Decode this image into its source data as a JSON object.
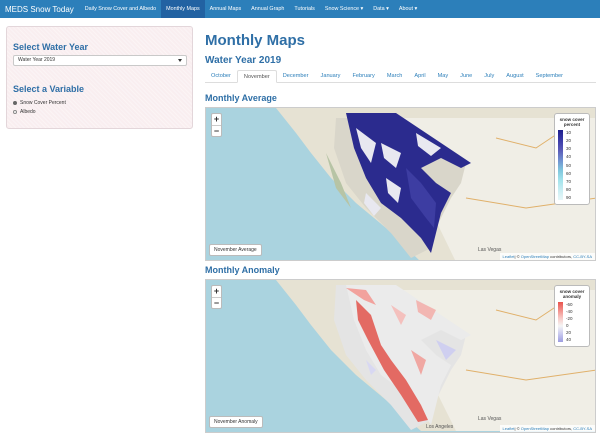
{
  "navbar": {
    "brand": "MEDS Snow Today",
    "items": [
      {
        "label": "Daily Snow Cover and Albedo"
      },
      {
        "label": "Monthly Maps"
      },
      {
        "label": "Annual Maps"
      },
      {
        "label": "Annual Graph"
      },
      {
        "label": "Tutorials"
      },
      {
        "label": "Snow Science ▾"
      },
      {
        "label": "Data ▾"
      },
      {
        "label": "About ▾"
      }
    ],
    "active_index": 1
  },
  "sidebar": {
    "year_heading": "Select Water Year",
    "year_value": "Water Year 2019",
    "variable_heading": "Select a Variable",
    "options": [
      {
        "label": "Snow Cover Percent",
        "selected": true
      },
      {
        "label": "Albedo",
        "selected": false
      }
    ]
  },
  "main": {
    "title": "Monthly Maps",
    "subtitle": "Water Year 2019",
    "tabs": [
      "October",
      "November",
      "December",
      "January",
      "February",
      "March",
      "April",
      "May",
      "June",
      "July",
      "August",
      "September"
    ],
    "active_tab": "November",
    "average": {
      "heading": "Monthly Average",
      "label": "November Average",
      "legend_title": "snow cover percent",
      "legend_ticks": [
        "10",
        "20",
        "30",
        "40",
        "50",
        "60",
        "70",
        "80",
        "90"
      ],
      "legend_colors": [
        "#1f1f8f",
        "#3a3aa8",
        "#5a5ab8",
        "#6f8fd0",
        "#7fc6dd",
        "#a3e3ec",
        "#c9eef3",
        "#e8f7f9"
      ]
    },
    "anomaly": {
      "heading": "Monthly Anomaly",
      "label": "November Anomaly",
      "legend_title": "snow cover anomaly",
      "legend_ticks": [
        "-60",
        "-40",
        "-20",
        "0",
        "20",
        "40"
      ],
      "legend_colors": [
        "#e8554e",
        "#f28c87",
        "#f7c9c6",
        "#f5f5f5",
        "#c9c9ef",
        "#9d9de0"
      ]
    },
    "map_labels": {
      "las_vegas": "Las Vegas",
      "los_angeles": "Los Angeles"
    },
    "attribution": {
      "leaflet": "Leaflet",
      "middle": "| © ",
      "osm": "OpenStreetMap",
      "contrib": " contributors, ",
      "license": "CC-BY-SA"
    }
  }
}
